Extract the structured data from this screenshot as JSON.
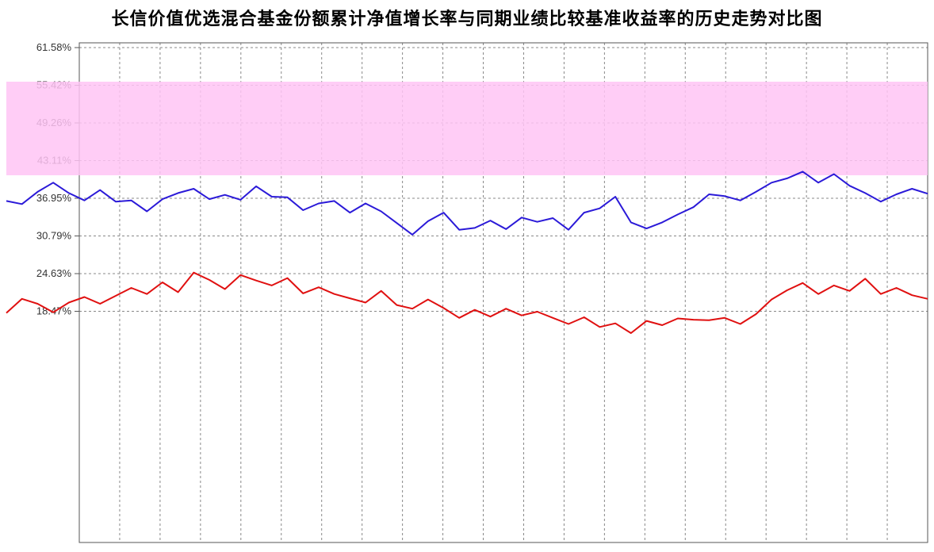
{
  "chart_data": {
    "type": "line",
    "title": "长信价值优选混合基金份额累计净值增长率与同期业绩比较基准收益率的历史走势对比图",
    "y_ticks": [
      "61.58%",
      "55.42%",
      "49.26%",
      "43.11%",
      "36.95%",
      "30.79%",
      "24.63%",
      "18.47%"
    ],
    "ylim": [
      18.47,
      61.58
    ],
    "grid": true,
    "colors": {
      "fund": "#2b1ad8",
      "benchmark": "#e01010",
      "overlay": "#ffc4f4",
      "grid": "#888888"
    },
    "series": [
      {
        "key": "fund",
        "values": [
          36.5,
          36.0,
          38.0,
          39.5,
          37.8,
          36.6,
          38.3,
          36.4,
          36.6,
          34.8,
          36.8,
          37.8,
          38.5,
          36.8,
          37.5,
          36.7,
          38.9,
          37.2,
          37.1,
          35.0,
          36.1,
          36.5,
          34.6,
          36.1,
          34.8,
          32.9,
          31.0,
          33.2,
          34.6,
          31.8,
          32.1,
          33.3,
          31.9,
          33.8,
          33.1,
          33.7,
          31.8,
          34.6,
          35.3,
          37.2,
          33.0,
          32.0,
          33.0,
          34.3,
          35.5,
          37.6,
          37.3,
          36.6,
          38.0,
          39.5,
          40.2,
          41.3,
          39.5,
          40.9,
          39.0,
          37.8,
          36.4,
          37.6,
          38.5,
          37.7
        ]
      },
      {
        "key": "benchmark",
        "values": [
          18.2,
          20.5,
          19.7,
          18.3,
          19.9,
          20.8,
          19.7,
          21.0,
          22.3,
          21.3,
          23.2,
          21.6,
          24.8,
          23.6,
          22.1,
          24.4,
          23.5,
          22.7,
          23.9,
          21.4,
          22.4,
          21.3,
          20.6,
          19.9,
          21.8,
          19.5,
          18.9,
          20.4,
          19.0,
          17.4,
          18.7,
          17.6,
          18.9,
          17.8,
          18.4,
          17.4,
          16.4,
          17.5,
          15.9,
          16.5,
          14.9,
          16.9,
          16.2,
          17.3,
          17.1,
          17.0,
          17.4,
          16.4,
          18.0,
          20.4,
          21.9,
          23.1,
          21.3,
          22.7,
          21.8,
          23.8,
          21.3,
          22.3,
          21.1,
          20.5
        ]
      }
    ]
  }
}
